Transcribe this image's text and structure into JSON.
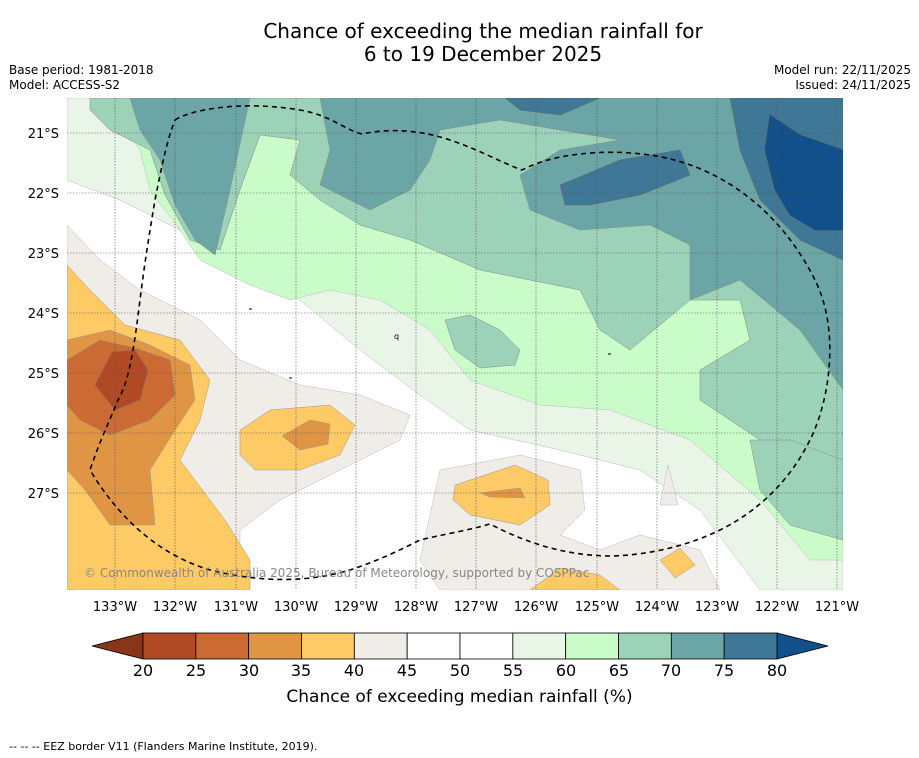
{
  "title": {
    "line1": "Chance of exceeding the median rainfall for",
    "line2": "6 to 19 December 2025"
  },
  "meta": {
    "base_period": "Base period: 1981-2018",
    "model": "Model: ACCESS-S2",
    "model_run": "Model run: 22/11/2025",
    "issued": "Issued: 24/11/2025"
  },
  "map": {
    "lat_labels": [
      "21°S",
      "22°S",
      "23°S",
      "24°S",
      "25°S",
      "26°S",
      "27°S"
    ],
    "lon_labels": [
      "133°W",
      "132°W",
      "131°W",
      "130°W",
      "129°W",
      "128°W",
      "127°W",
      "126°W",
      "125°W",
      "124°W",
      "123°W",
      "122°W",
      "121°W"
    ],
    "copyright": "© Commonwealth of Australia 2025, Bureau of Meteorology, supported by COSPPac",
    "stray_label": "q"
  },
  "colorbar": {
    "title": "Chance of exceeding median rainfall (%)",
    "ticks": [
      "20",
      "25",
      "30",
      "35",
      "40",
      "45",
      "50",
      "55",
      "60",
      "65",
      "70",
      "75",
      "80"
    ],
    "colors": [
      "#b04a24",
      "#cc6a33",
      "#e09544",
      "#fdca65",
      "#f0ece7",
      "#ffffff",
      "#ffffff",
      "#e9f5e7",
      "#c9fcc9",
      "#9cd2b8",
      "#6ca5a6",
      "#3f7797"
    ],
    "low_color": "#8a3518",
    "high_color": "#11508b"
  },
  "footnote": "-- -- -- EEZ border V11 (Flanders Marine Institute, 2019)."
}
